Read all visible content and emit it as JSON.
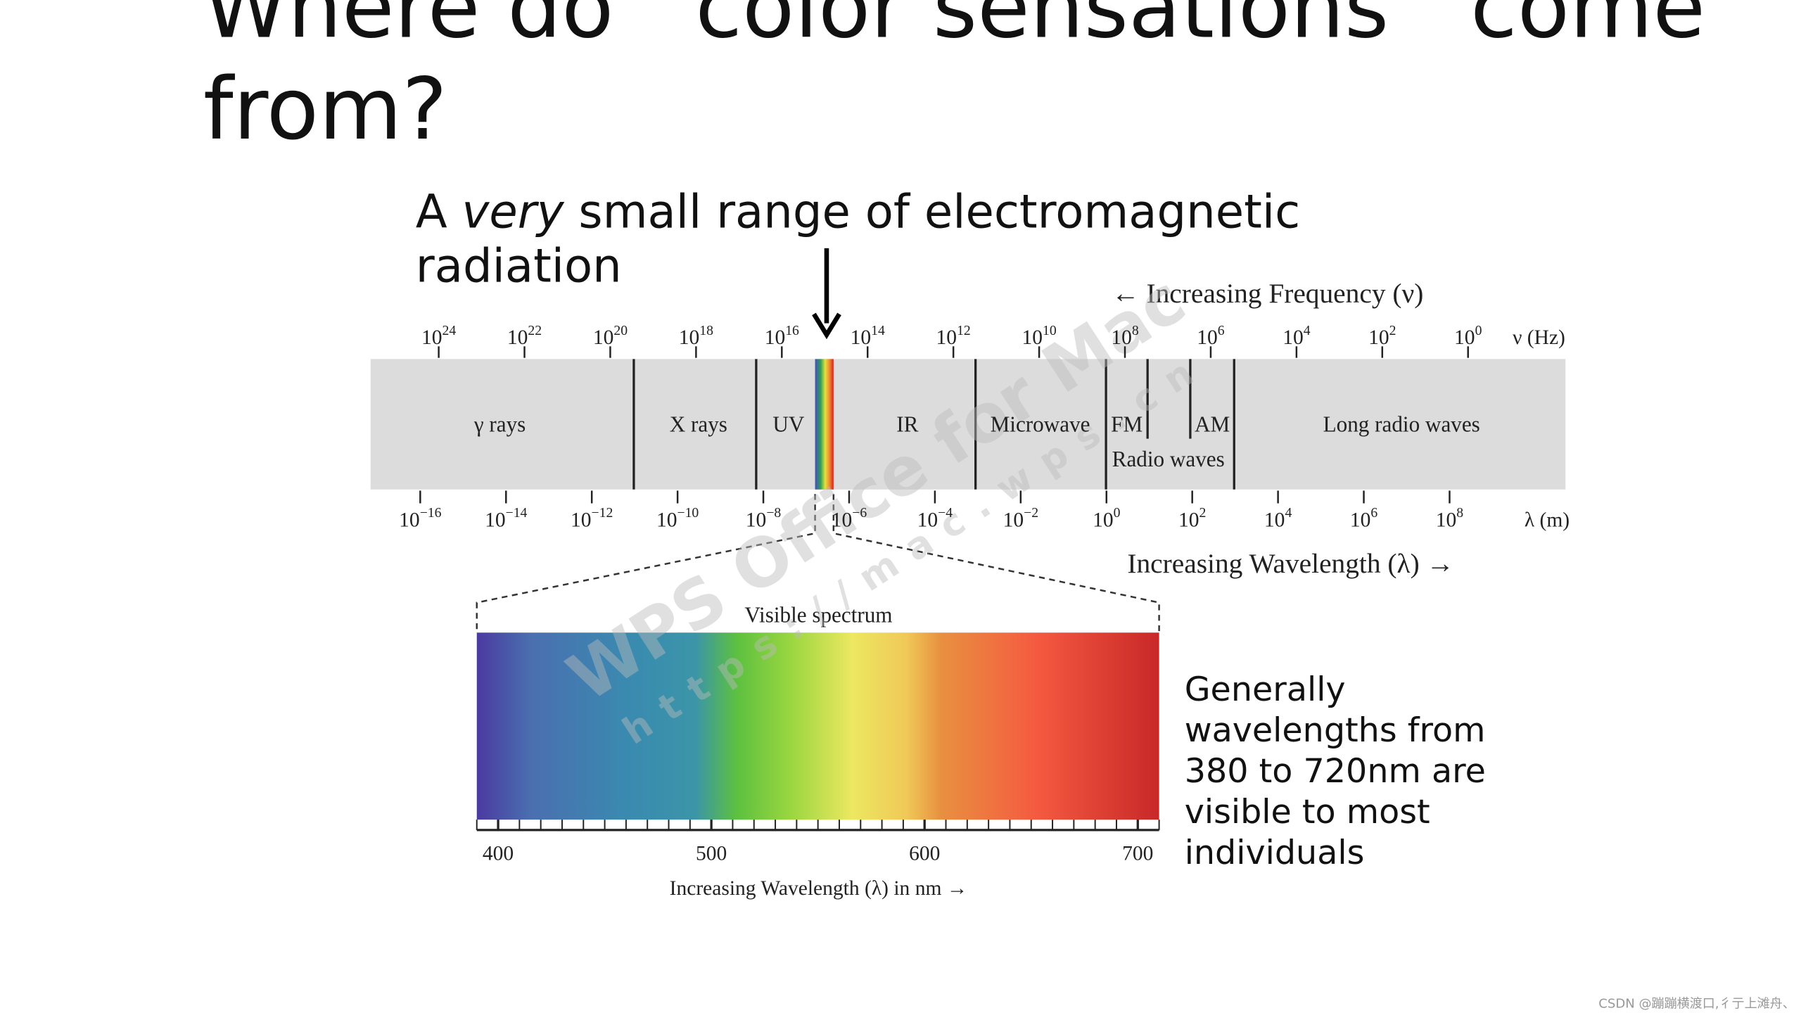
{
  "slide": {
    "title_lines": [
      "Where do   color sensations   come",
      "from?"
    ],
    "subtitle": {
      "parts": [
        "A ",
        "very",
        " small range of electromagnetic"
      ],
      "line2": "radiation"
    },
    "spectrum": {
      "frequency_heading": "← Increasing Frequency (ν)",
      "frequency_unit": "ν (Hz)",
      "frequency_ticks": [
        {
          "base": "10",
          "exp": "24"
        },
        {
          "base": "10",
          "exp": "22"
        },
        {
          "base": "10",
          "exp": "20"
        },
        {
          "base": "10",
          "exp": "18"
        },
        {
          "base": "10",
          "exp": "16"
        },
        {
          "base": "10",
          "exp": "14"
        },
        {
          "base": "10",
          "exp": "12"
        },
        {
          "base": "10",
          "exp": "10"
        },
        {
          "base": "10",
          "exp": "8"
        },
        {
          "base": "10",
          "exp": "6"
        },
        {
          "base": "10",
          "exp": "4"
        },
        {
          "base": "10",
          "exp": "2"
        },
        {
          "base": "10",
          "exp": "0"
        }
      ],
      "wavelength_unit": "λ (m)",
      "wavelength_ticks": [
        {
          "base": "10",
          "exp": "−16"
        },
        {
          "base": "10",
          "exp": "−14"
        },
        {
          "base": "10",
          "exp": "−12"
        },
        {
          "base": "10",
          "exp": "−10"
        },
        {
          "base": "10",
          "exp": "−8"
        },
        {
          "base": "10",
          "exp": "−6"
        },
        {
          "base": "10",
          "exp": "−4"
        },
        {
          "base": "10",
          "exp": "−2"
        },
        {
          "base": "10",
          "exp": "0"
        },
        {
          "base": "10",
          "exp": "2"
        },
        {
          "base": "10",
          "exp": "4"
        },
        {
          "base": "10",
          "exp": "6"
        },
        {
          "base": "10",
          "exp": "8"
        }
      ],
      "wavelength_heading": "Increasing Wavelength (λ) →",
      "regions": [
        "γ rays",
        "X rays",
        "UV",
        "IR",
        "Microwave",
        "FM",
        "AM",
        "Long radio waves",
        "Radio waves"
      ]
    },
    "visible": {
      "title": "Visible spectrum",
      "xlim": [
        390,
        710
      ],
      "xticks": [
        400,
        500,
        600,
        700
      ],
      "axis_label": "Increasing Wavelength (λ) in nm →"
    },
    "note_lines": [
      "Generally",
      "wavelengths  from",
      "380 to 720nm are",
      "visible to most",
      "individuals"
    ],
    "watermark": [
      "WPS Office for Mac",
      "https://mac.wps.cn"
    ],
    "footer": "CSDN @蹦蹦横渡口,彳亍上滩舟、"
  }
}
